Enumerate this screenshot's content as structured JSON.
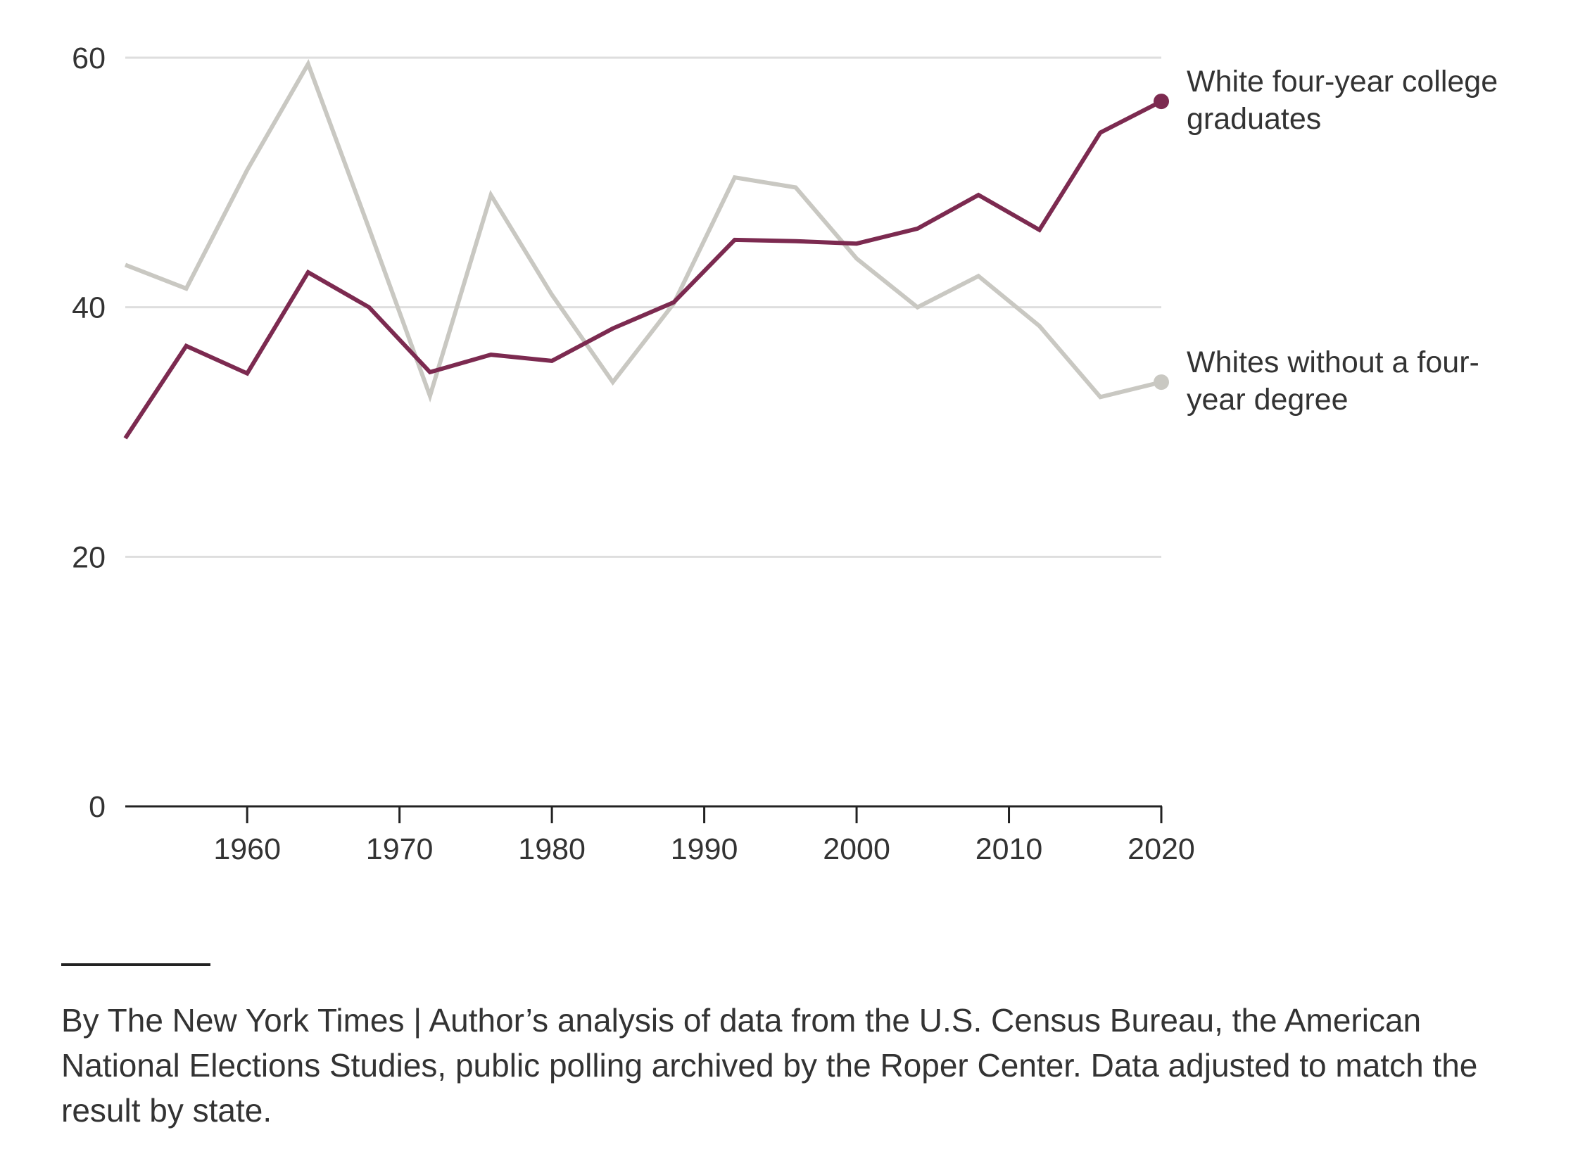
{
  "chart_data": {
    "type": "line",
    "title": "",
    "xlabel": "",
    "ylabel": "",
    "xlim": [
      1952,
      2020
    ],
    "ylim": [
      0,
      60
    ],
    "y_ticks": [
      0,
      20,
      40,
      60
    ],
    "x_ticks": [
      1960,
      1970,
      1980,
      1990,
      2000,
      2010,
      2020
    ],
    "grid": true,
    "x": [
      1952,
      1956,
      1960,
      1964,
      1968,
      1972,
      1976,
      1980,
      1984,
      1988,
      1992,
      1996,
      2000,
      2004,
      2008,
      2012,
      2016,
      2020
    ],
    "series": [
      {
        "name": "White four-year college graduates",
        "label_lines": [
          "White four-year college",
          "graduates"
        ],
        "color": "#7c2a50",
        "values": [
          29.5,
          36.9,
          34.7,
          42.8,
          40.0,
          34.8,
          36.2,
          35.7,
          38.3,
          40.4,
          45.4,
          45.3,
          45.1,
          46.3,
          49.0,
          46.2,
          54.0,
          56.5
        ]
      },
      {
        "name": "Whites without a four-year degree",
        "label_lines": [
          "Whites without a four-",
          "year degree"
        ],
        "color": "#c9c8c2",
        "values": [
          43.4,
          41.5,
          51.0,
          59.5,
          46.3,
          32.9,
          49.0,
          41.0,
          34.0,
          40.3,
          50.4,
          49.6,
          43.9,
          40.0,
          42.5,
          38.5,
          32.8,
          34.0
        ]
      }
    ]
  },
  "source": {
    "text": "By The New York Times | Author’s analysis of data from the U.S. Census Bureau, the American National Elections Studies, public polling archived by the Roper Center. Data adjusted to match the result by state."
  }
}
